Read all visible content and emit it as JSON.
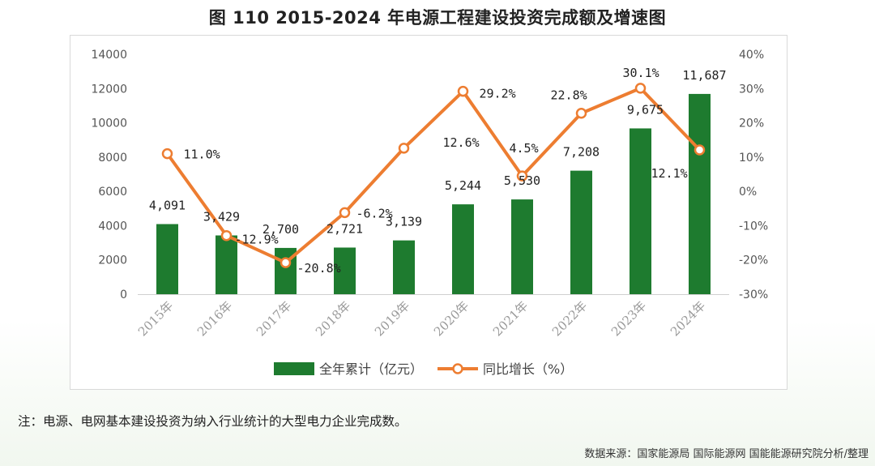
{
  "title": "图 110 2015-2024 年电源工程建设投资完成额及增速图",
  "note": "注：电源、电网基本建设投资为纳入行业统计的大型电力企业完成数。",
  "source": "数据来源：国家能源局 国际能源网 国能能源研究院分析/整理",
  "colors": {
    "bar": "#1e7b2f",
    "line": "#ed7d31",
    "axis_text": "#555555"
  },
  "chart_data": {
    "type": "bar+line",
    "categories": [
      "2015年",
      "2016年",
      "2017年",
      "2018年",
      "2019年",
      "2020年",
      "2021年",
      "2022年",
      "2023年",
      "2024年"
    ],
    "series": [
      {
        "name": "全年累计（亿元）",
        "type": "bar",
        "axis": "left",
        "values": [
          4091,
          3429,
          2700,
          2721,
          3139,
          5244,
          5530,
          7208,
          9675,
          11687
        ],
        "labels": [
          "4,091",
          "3,429",
          "2,700",
          "2,721",
          "3,139",
          "5,244",
          "5,530",
          "7,208",
          "9,675",
          "11,687"
        ]
      },
      {
        "name": "同比增长（%）",
        "type": "line",
        "axis": "right",
        "values": [
          11.0,
          -12.9,
          -20.8,
          -6.2,
          12.6,
          29.2,
          4.5,
          22.8,
          30.1,
          12.1
        ],
        "labels": [
          "11.0%",
          "-12.9%",
          "-20.8%",
          "-6.2%",
          "12.6%",
          "29.2%",
          "4.5%",
          "22.8%",
          "30.1%",
          "12.1%"
        ]
      }
    ],
    "y_left": {
      "ylim": [
        0,
        14000
      ],
      "ticks": [
        "0",
        "2000",
        "4000",
        "6000",
        "8000",
        "10000",
        "12000",
        "14000"
      ]
    },
    "y_right": {
      "ylim": [
        -30,
        40
      ],
      "ticks": [
        "-30%",
        "-20%",
        "-10%",
        "0%",
        "10%",
        "20%",
        "30%",
        "40%"
      ]
    },
    "legend_position": "bottom",
    "grid": false
  }
}
